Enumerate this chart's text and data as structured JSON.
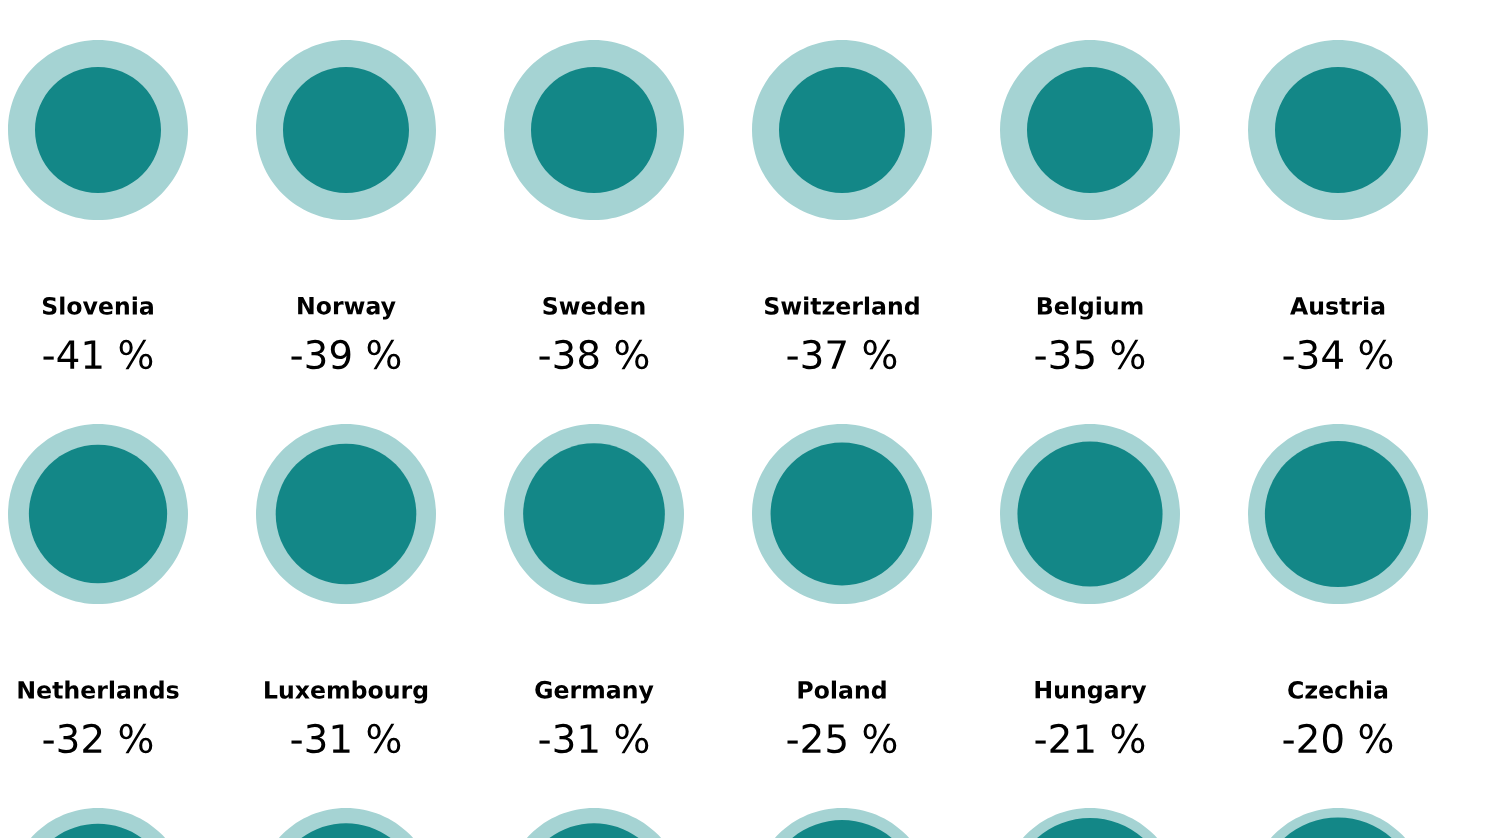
{
  "chart_data": {
    "type": "other",
    "categories": [
      null,
      null,
      null,
      null,
      null,
      null,
      "Slovenia",
      "Norway",
      "Sweden",
      "Switzerland",
      "Belgium",
      "Austria",
      "Netherlands",
      "Luxembourg",
      "Germany",
      "Poland",
      "Hungary",
      "Czechia",
      null,
      null,
      null,
      null,
      null,
      null
    ],
    "values": [
      null,
      null,
      null,
      null,
      null,
      null,
      -41,
      -39,
      -38,
      -37,
      -35,
      -34,
      -32,
      -31,
      -31,
      -25,
      -21,
      -20,
      null,
      null,
      null,
      null,
      null,
      null
    ],
    "value_labels": [
      null,
      null,
      null,
      null,
      null,
      null,
      "-41 %",
      "-39 %",
      "-38 %",
      "-37 %",
      "-35 %",
      "-34 %",
      "-32 %",
      "-31 %",
      "-31 %",
      "-25 %",
      "-21 %",
      "-20 %",
      null,
      null,
      null,
      null,
      null,
      null
    ],
    "color": "#138787"
  }
}
